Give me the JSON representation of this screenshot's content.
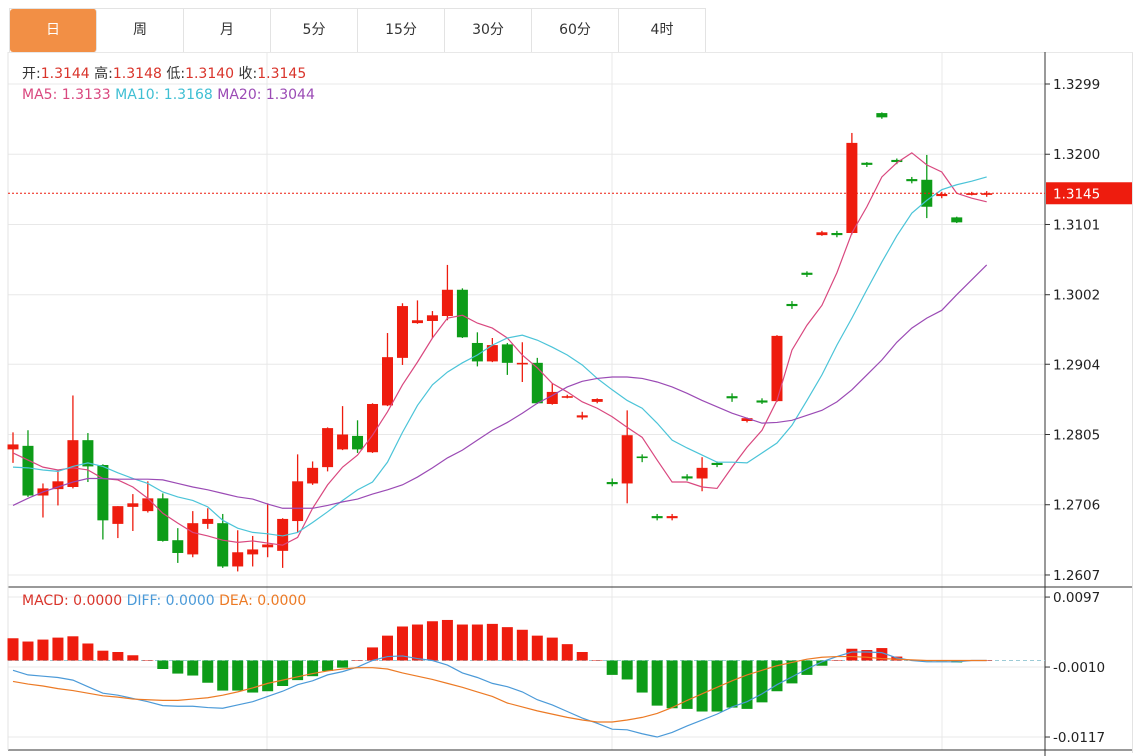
{
  "tabs": [
    {
      "label": "日",
      "active": true
    },
    {
      "label": "周",
      "active": false
    },
    {
      "label": "月",
      "active": false
    },
    {
      "label": "5分",
      "active": false
    },
    {
      "label": "15分",
      "active": false
    },
    {
      "label": "30分",
      "active": false
    },
    {
      "label": "60分",
      "active": false
    },
    {
      "label": "4时",
      "active": false
    }
  ],
  "ohlc_legend": {
    "open_label": "开:",
    "open": "1.3144",
    "high_label": "高:",
    "high": "1.3148",
    "low_label": "低:",
    "low": "1.3140",
    "close_label": "收:",
    "close": "1.3145"
  },
  "ma_legend": {
    "ma5": "MA5: 1.3133",
    "ma10": "MA10: 1.3168",
    "ma20": "MA20: 1.3044"
  },
  "macd_legend": {
    "macd": "MACD: 0.0000",
    "diff": "DIFF: 0.0000",
    "dea": "DEA: 0.0000"
  },
  "colors": {
    "up": "#ee1c0e",
    "down": "#0d9c18",
    "ma5": "#d9487f",
    "ma10": "#4bc4d8",
    "ma20": "#9b4bb5",
    "diff": "#4b9ad8",
    "dea": "#ec7a25",
    "active_tab": "#f28f45",
    "last_price": "#ee1c0e"
  },
  "chart_data": [
    {
      "type": "candlestick",
      "title": "",
      "price_axis_ticks": [
        "1.3299",
        "1.3200",
        "1.3101",
        "1.3002",
        "1.2904",
        "1.2805",
        "1.2706",
        "1.2607"
      ],
      "ylim": [
        1.259,
        1.3345
      ],
      "last_price": "1.3145",
      "grid": true,
      "candles_ohlc": [
        [
          1.2784,
          1.2808,
          1.2765,
          1.2791
        ],
        [
          1.2789,
          1.2811,
          1.2717,
          1.2719
        ],
        [
          1.2719,
          1.2736,
          1.2688,
          1.2729
        ],
        [
          1.2728,
          1.2755,
          1.2705,
          1.2739
        ],
        [
          1.2731,
          1.286,
          1.2729,
          1.2797
        ],
        [
          1.2797,
          1.2807,
          1.2738,
          1.276
        ],
        [
          1.2762,
          1.2763,
          1.2657,
          1.2684
        ],
        [
          1.2679,
          1.2704,
          1.2659,
          1.2704
        ],
        [
          1.2703,
          1.2721,
          1.2669,
          1.2708
        ],
        [
          1.2697,
          1.2739,
          1.2695,
          1.2715
        ],
        [
          1.2715,
          1.2722,
          1.2654,
          1.2655
        ],
        [
          1.2656,
          1.2673,
          1.2624,
          1.2638
        ],
        [
          1.2636,
          1.2697,
          1.2632,
          1.268
        ],
        [
          1.2679,
          1.2701,
          1.2672,
          1.2686
        ],
        [
          1.268,
          1.2693,
          1.2617,
          1.2619
        ],
        [
          1.2619,
          1.267,
          1.2612,
          1.2639
        ],
        [
          1.2636,
          1.2662,
          1.2619,
          1.2643
        ],
        [
          1.2646,
          1.2708,
          1.2632,
          1.265
        ],
        [
          1.2641,
          1.2687,
          1.2617,
          1.2686
        ],
        [
          1.2683,
          1.2777,
          1.2667,
          1.2739
        ],
        [
          1.2736,
          1.2767,
          1.2734,
          1.2758
        ],
        [
          1.2759,
          1.2815,
          1.2753,
          1.2814
        ],
        [
          1.2784,
          1.2845,
          1.2783,
          1.2805
        ],
        [
          1.2803,
          1.2825,
          1.2779,
          1.2784
        ],
        [
          1.278,
          1.2849,
          1.2779,
          1.2848
        ],
        [
          1.2846,
          1.2948,
          1.2845,
          1.2914
        ],
        [
          1.2913,
          1.299,
          1.2903,
          1.2986
        ],
        [
          1.2962,
          1.2994,
          1.2961,
          1.2966
        ],
        [
          1.2965,
          1.2979,
          1.2941,
          1.2973
        ],
        [
          1.2972,
          1.3044,
          1.2966,
          1.3009
        ],
        [
          1.3009,
          1.3011,
          1.2941,
          1.2942
        ],
        [
          1.2934,
          1.2949,
          1.2901,
          1.2908
        ],
        [
          1.2908,
          1.2941,
          1.2907,
          1.2931
        ],
        [
          1.2932,
          1.2934,
          1.2889,
          1.2906
        ],
        [
          1.2904,
          1.2935,
          1.2879,
          1.2906
        ],
        [
          1.2906,
          1.2913,
          1.2848,
          1.2849
        ],
        [
          1.2848,
          1.2877,
          1.2847,
          1.2865
        ],
        [
          1.2858,
          1.2861,
          1.2856,
          1.2859
        ],
        [
          1.2829,
          1.2837,
          1.2826,
          1.2832
        ],
        [
          1.2851,
          1.2856,
          1.2849,
          1.2855
        ],
        [
          1.2738,
          1.2743,
          1.2732,
          1.2735
        ],
        [
          1.2736,
          1.2839,
          1.2708,
          1.2804
        ],
        [
          1.2774,
          1.2777,
          1.2766,
          1.2772
        ],
        [
          1.269,
          1.2693,
          1.2684,
          1.2687
        ],
        [
          1.2687,
          1.2693,
          1.2684,
          1.269
        ],
        [
          1.2746,
          1.2749,
          1.274,
          1.2743
        ],
        [
          1.2743,
          1.2773,
          1.2725,
          1.2758
        ],
        [
          1.2765,
          1.2767,
          1.2759,
          1.2762
        ],
        [
          1.2859,
          1.2863,
          1.2851,
          1.2856
        ],
        [
          1.2824,
          1.2829,
          1.2822,
          1.2828
        ],
        [
          1.2853,
          1.2856,
          1.2848,
          1.285
        ],
        [
          1.2852,
          1.2945,
          1.2851,
          1.2944
        ],
        [
          1.2989,
          1.2993,
          1.2982,
          1.2986
        ],
        [
          1.3033,
          1.3035,
          1.3027,
          1.303
        ],
        [
          1.3086,
          1.3092,
          1.3085,
          1.309
        ],
        [
          1.3089,
          1.3092,
          1.3083,
          1.3086
        ],
        [
          1.3089,
          1.323,
          1.3087,
          1.3216
        ],
        [
          1.3188,
          1.3189,
          1.3182,
          1.3185
        ],
        [
          1.3258,
          1.3259,
          1.325,
          1.3252
        ],
        [
          1.3192,
          1.3194,
          1.3186,
          1.3189
        ],
        [
          1.3165,
          1.3168,
          1.3159,
          1.3162
        ],
        [
          1.3164,
          1.3199,
          1.311,
          1.3126
        ],
        [
          1.3141,
          1.3147,
          1.3138,
          1.3144
        ],
        [
          1.3111,
          1.3112,
          1.3103,
          1.3104
        ],
        [
          1.3144,
          1.3147,
          1.3142,
          1.3145
        ],
        [
          1.3144,
          1.3148,
          1.314,
          1.3145
        ]
      ],
      "series": [
        {
          "name": "MA5",
          "values": [
            1.2779,
            1.2769,
            1.2759,
            1.2755,
            1.2758,
            1.2755,
            1.2743,
            1.2741,
            1.2731,
            1.2715,
            1.2694,
            1.268,
            1.2667,
            1.2662,
            1.2656,
            1.2653,
            1.2655,
            1.2652,
            1.2649,
            1.266,
            1.2701,
            1.2734,
            1.2759,
            1.2776,
            1.2804,
            1.2837,
            1.2875,
            1.2907,
            1.2941,
            1.2969,
            1.2973,
            1.2962,
            1.2955,
            1.2941,
            1.2917,
            1.2899,
            1.2877,
            1.2865,
            1.2851,
            1.2842,
            1.283,
            1.2815,
            1.2801,
            1.2769,
            1.2738,
            1.2738,
            1.2731,
            1.2729,
            1.2759,
            1.2787,
            1.2811,
            1.2853,
            1.2924,
            1.2959,
            1.2987,
            1.3033,
            1.3089,
            1.3126,
            1.3168,
            1.3188,
            1.3202,
            1.3185,
            1.3175,
            1.3145,
            1.3138,
            1.3133
          ]
        },
        {
          "name": "MA10",
          "values": [
            1.2759,
            1.2758,
            1.2755,
            1.2753,
            1.276,
            1.2765,
            1.276,
            1.2751,
            1.2743,
            1.2736,
            1.2724,
            1.2717,
            1.2712,
            1.2703,
            1.2684,
            1.2673,
            1.2667,
            1.2665,
            1.2662,
            1.2667,
            1.2681,
            1.2696,
            1.2712,
            1.2727,
            1.2738,
            1.2766,
            1.2808,
            1.2846,
            1.2875,
            1.2893,
            1.2906,
            1.2917,
            1.2931,
            1.2941,
            1.2945,
            1.2938,
            1.2928,
            1.2917,
            1.2903,
            1.2884,
            1.2868,
            1.2853,
            1.2842,
            1.2821,
            1.2797,
            1.2786,
            1.2776,
            1.2766,
            1.2766,
            1.2765,
            1.2779,
            1.2793,
            1.2818,
            1.2853,
            1.2889,
            1.2931,
            1.2969,
            1.3009,
            1.3048,
            1.3085,
            1.3117,
            1.3135,
            1.315,
            1.3157,
            1.3162,
            1.3168
          ]
        },
        {
          "name": "MA20",
          "values": [
            1.2705,
            1.2715,
            1.2724,
            1.2731,
            1.2738,
            1.2743,
            1.2743,
            1.2742,
            1.2742,
            1.2742,
            1.2741,
            1.2736,
            1.2731,
            1.2727,
            1.2722,
            1.2717,
            1.2714,
            1.2707,
            1.2701,
            1.2701,
            1.2701,
            1.2705,
            1.271,
            1.2714,
            1.2721,
            1.2727,
            1.2734,
            1.2745,
            1.2758,
            1.2772,
            1.2783,
            1.2797,
            1.2811,
            1.2822,
            1.2835,
            1.2849,
            1.286,
            1.2872,
            1.288,
            1.2884,
            1.2886,
            1.2886,
            1.2884,
            1.2879,
            1.2872,
            1.2863,
            1.2853,
            1.2844,
            1.2835,
            1.2828,
            1.2821,
            1.2822,
            1.2825,
            1.2832,
            1.2839,
            1.2851,
            1.2868,
            1.2889,
            1.291,
            1.2935,
            1.2955,
            1.2969,
            1.298,
            1.3002,
            1.3023,
            1.3044
          ]
        }
      ]
    },
    {
      "type": "bar+line",
      "title": "",
      "axis_ticks": [
        "0.0097",
        "-0.0010",
        "-0.0117"
      ],
      "ylim": [
        -0.0135,
        0.0097
      ],
      "zero_line": "dashed",
      "macd_histogram": [
        0.0034,
        0.0029,
        0.0032,
        0.0035,
        0.0037,
        0.0026,
        0.0015,
        0.0013,
        0.0008,
        0.0,
        -0.0013,
        -0.002,
        -0.0023,
        -0.0034,
        -0.0046,
        -0.0046,
        -0.0049,
        -0.0047,
        -0.0039,
        -0.003,
        -0.0024,
        -0.0016,
        -0.0011,
        0.0,
        0.002,
        0.0038,
        0.0052,
        0.0055,
        0.006,
        0.0062,
        0.0055,
        0.0055,
        0.0056,
        0.0051,
        0.0047,
        0.0038,
        0.0035,
        0.0025,
        0.0013,
        0.0,
        -0.0022,
        -0.0029,
        -0.0049,
        -0.0069,
        -0.0073,
        -0.0074,
        -0.0078,
        -0.0078,
        -0.0072,
        -0.0074,
        -0.0064,
        -0.0047,
        -0.0035,
        -0.0022,
        -0.0008,
        0.0,
        0.0018,
        0.0016,
        0.0019,
        0.0006,
        0.0001,
        -0.0001,
        -0.0001,
        -0.0003,
        0.0,
        0.0
      ],
      "series": [
        {
          "name": "DIFF",
          "values": [
            -0.0015,
            -0.0022,
            -0.0024,
            -0.0026,
            -0.003,
            -0.004,
            -0.005,
            -0.0053,
            -0.0058,
            -0.0063,
            -0.0069,
            -0.007,
            -0.007,
            -0.0072,
            -0.0073,
            -0.0068,
            -0.0063,
            -0.0055,
            -0.0047,
            -0.0037,
            -0.0031,
            -0.0022,
            -0.0017,
            -0.001,
            0.0,
            0.0006,
            0.0007,
            0.0003,
            0.0,
            -0.0007,
            -0.0019,
            -0.0026,
            -0.0035,
            -0.004,
            -0.0048,
            -0.006,
            -0.0068,
            -0.0078,
            -0.0088,
            -0.0096,
            -0.0105,
            -0.0106,
            -0.0112,
            -0.0117,
            -0.011,
            -0.01,
            -0.0091,
            -0.0082,
            -0.0071,
            -0.0063,
            -0.0051,
            -0.0037,
            -0.0025,
            -0.0013,
            -0.0002,
            0.0006,
            0.0013,
            0.0013,
            0.0012,
            0.0004,
            0.0,
            -0.0002,
            -0.0002,
            -0.0002,
            0.0,
            0.0
          ]
        },
        {
          "name": "DEA",
          "values": [
            -0.0032,
            -0.0036,
            -0.0039,
            -0.0043,
            -0.0046,
            -0.005,
            -0.0054,
            -0.0056,
            -0.0059,
            -0.006,
            -0.0061,
            -0.0061,
            -0.0059,
            -0.0057,
            -0.0053,
            -0.0048,
            -0.0042,
            -0.0035,
            -0.003,
            -0.0025,
            -0.002,
            -0.0016,
            -0.0013,
            -0.0011,
            -0.0011,
            -0.0013,
            -0.0019,
            -0.0024,
            -0.0029,
            -0.0035,
            -0.0041,
            -0.0048,
            -0.0055,
            -0.0065,
            -0.0071,
            -0.0077,
            -0.0082,
            -0.0087,
            -0.0091,
            -0.0094,
            -0.0094,
            -0.0091,
            -0.0087,
            -0.0081,
            -0.0072,
            -0.0061,
            -0.0051,
            -0.0041,
            -0.0031,
            -0.0022,
            -0.0015,
            -0.0008,
            -0.0003,
            0.0002,
            0.0005,
            0.0006,
            0.0006,
            0.0005,
            0.0003,
            0.0002,
            0.0001,
            0.0,
            0.0,
            0.0,
            0.0,
            0.0
          ]
        }
      ]
    }
  ]
}
